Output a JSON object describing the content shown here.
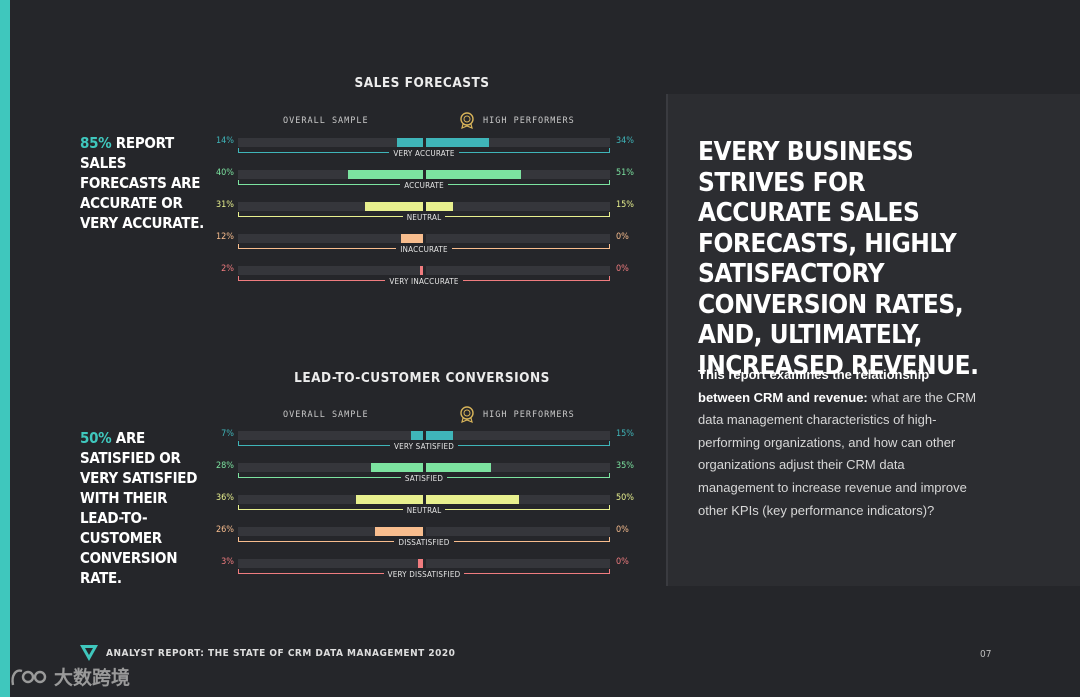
{
  "colors": {
    "accent": "#3fc7bd",
    "very_positive": "#3fb5b9",
    "positive": "#7ce3a0",
    "neutral": "#e8f08e",
    "negative": "#f8bd8e",
    "very_negative": "#f07c7f",
    "track": "#35363b"
  },
  "sales": {
    "title": "SALES FORECASTS",
    "overall_label": "OVERALL SAMPLE",
    "high_label": "HIGH PERFORMERS",
    "callout_pct": "85%",
    "callout_text": " REPORT SALES FORECASTS ARE ACCURATE OR VERY ACCURATE."
  },
  "leads": {
    "title": "LEAD-TO-CUSTOMER CONVERSIONS",
    "overall_label": "OVERALL SAMPLE",
    "high_label": "HIGH PERFORMERS",
    "callout_pct": "50%",
    "callout_text": " ARE SATISFIED OR VERY SATISFIED WITH THEIR LEAD-TO-CUSTOMER CONVERSION RATE."
  },
  "chart_data": [
    {
      "type": "bar",
      "title": "SALES FORECASTS",
      "categories": [
        "VERY ACCURATE",
        "ACCURATE",
        "NEUTRAL",
        "INACCURATE",
        "VERY INACCURATE"
      ],
      "series": [
        {
          "name": "OVERALL SAMPLE",
          "values": [
            14,
            40,
            31,
            12,
            2
          ],
          "labels": [
            "14%",
            "40%",
            "31%",
            "12%",
            "2%"
          ]
        },
        {
          "name": "HIGH PERFORMERS",
          "values": [
            34,
            51,
            15,
            0,
            0
          ],
          "labels": [
            "34%",
            "51%",
            "15%",
            "0%",
            "0%"
          ]
        }
      ]
    },
    {
      "type": "bar",
      "title": "LEAD-TO-CUSTOMER CONVERSIONS",
      "categories": [
        "VERY SATISFIED",
        "SATISFIED",
        "NEUTRAL",
        "DISSATISFIED",
        "VERY DISSATISFIED"
      ],
      "series": [
        {
          "name": "OVERALL SAMPLE",
          "values": [
            7,
            28,
            36,
            26,
            3
          ],
          "labels": [
            "7%",
            "28%",
            "36%",
            "26%",
            "3%"
          ]
        },
        {
          "name": "HIGH PERFORMERS",
          "values": [
            15,
            35,
            50,
            0,
            0
          ],
          "labels": [
            "15%",
            "35%",
            "50%",
            "0%",
            "0%"
          ]
        }
      ]
    }
  ],
  "panel": {
    "headline": "EVERY BUSINESS STRIVES FOR ACCURATE SALES FORECASTS, HIGHLY SATISFACTORY CONVERSION RATES, AND, ULTIMATELY, INCREASED REVENUE.",
    "body_bold": "This report examines the relationship between CRM and revenue:",
    "body_rest": " what are the CRM data management characteristics of high-performing organizations, and how can other organizations adjust their CRM data management to increase revenue and improve other KPIs (key performance indicators)?"
  },
  "footer": {
    "title": "ANALYST REPORT: THE STATE OF CRM DATA MANAGEMENT 2020",
    "page": "07",
    "watermark": "大数跨境"
  }
}
